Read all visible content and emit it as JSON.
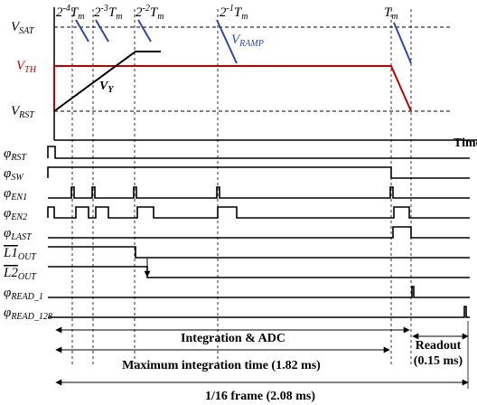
{
  "levels": {
    "sat": {
      "main": "V",
      "sub": "SAT"
    },
    "th": {
      "main": "V",
      "sub": "TH"
    },
    "rst": {
      "main": "V",
      "sub": "RST"
    }
  },
  "times": [
    {
      "base": "2",
      "exp": "-4",
      "main": "T",
      "sub": "m"
    },
    {
      "base": "2",
      "exp": "-3",
      "main": "T",
      "sub": "m"
    },
    {
      "base": "2",
      "exp": "-2",
      "main": "T",
      "sub": "m"
    },
    {
      "base": "2",
      "exp": "-1",
      "main": "T",
      "sub": "m"
    },
    {
      "main": "T",
      "sub": "m"
    }
  ],
  "ramp_label": {
    "main": "V",
    "sub": "RAMP"
  },
  "vy_label": {
    "main": "V",
    "sub": "Y"
  },
  "time_axis": "Time",
  "signals": [
    {
      "main": "φ",
      "sub": "RST"
    },
    {
      "main": "φ",
      "sub": "SW"
    },
    {
      "main": "φ",
      "sub": "EN1"
    },
    {
      "main": "φ",
      "sub": "EN2"
    },
    {
      "main": "φ",
      "sub": "LAST"
    },
    {
      "main": "L1",
      "sub": "OUT"
    },
    {
      "main": "L2",
      "sub": "OUT"
    },
    {
      "main": "φ",
      "sub": "READ_1"
    },
    {
      "main": "φ",
      "sub": "READ_128"
    }
  ],
  "annotations": {
    "integration": "Integration & ADC",
    "max_integration": "Maximum integration time (1.82 ms)",
    "readout": [
      "Readout",
      "(0.15 ms)"
    ],
    "frame": "1/16 frame (2.08 ms)"
  }
}
